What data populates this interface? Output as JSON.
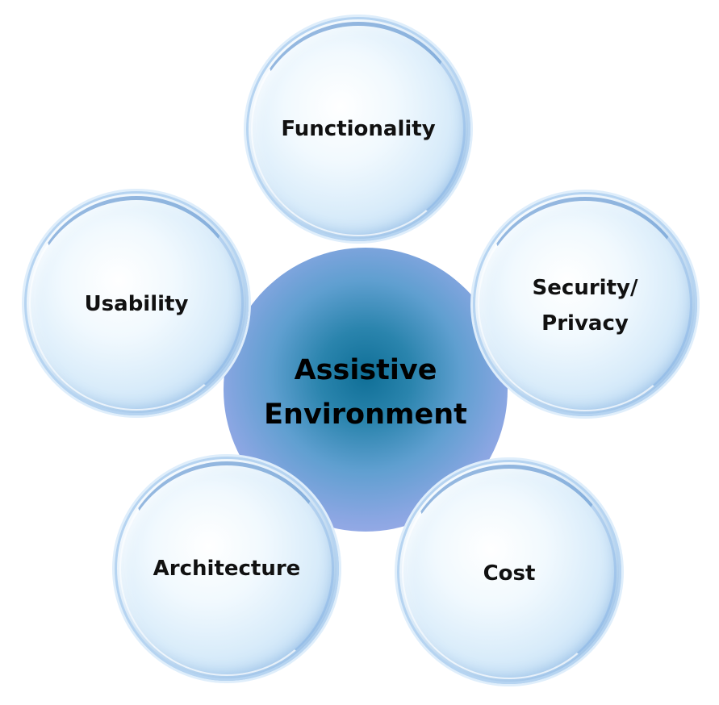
{
  "diagram": {
    "center": {
      "line1": "Assistive",
      "line2": "Environment"
    },
    "bubbles": {
      "functionality": "Functionality",
      "usability": "Usability",
      "security_line1": "Security/",
      "security_line2": "Privacy",
      "architecture": "Architecture",
      "cost": "Cost"
    },
    "colors": {
      "center_core": "#0f6f97",
      "center_edge": "#b9bdf2",
      "bubble_fill": "#d9ecfa",
      "bubble_rim": "#8fbbe6"
    }
  }
}
